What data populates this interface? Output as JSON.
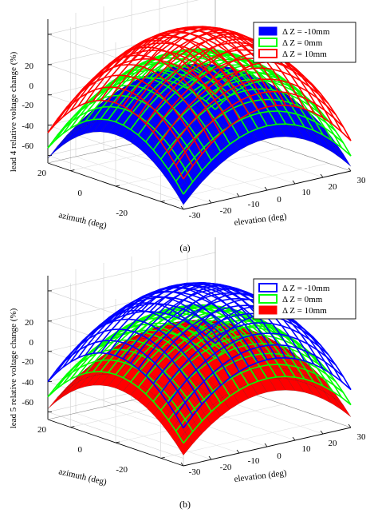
{
  "chart_data": [
    {
      "type": "surface",
      "panel_label": "(a)",
      "zlabel": "lead 4 relative voltage change (%)",
      "xlabel": "elevation (deg)",
      "ylabel": "azimuth (deg)",
      "x_ticks": [
        "-30",
        "-20",
        "-10",
        "0",
        "10",
        "20",
        "30"
      ],
      "y_ticks": [
        "-20",
        "0",
        "20"
      ],
      "z_ticks": [
        "-60",
        "-40",
        "-20",
        "0",
        "20"
      ],
      "xlim": [
        -30,
        30
      ],
      "ylim": [
        -30,
        30
      ],
      "zlim": [
        -65,
        30
      ],
      "grid": true,
      "legend_position": "top-right",
      "legend": [
        "Δ Z = -10mm",
        "Δ Z = 0mm",
        "Δ Z = 10mm"
      ],
      "series": [
        {
          "name": "Δ Z = -10mm",
          "color": "#0000ff",
          "style": "filled",
          "peak": 0,
          "edge_min": -62
        },
        {
          "name": "Δ Z = 0mm",
          "color": "#00ff00",
          "style": "wireframe",
          "peak": 10,
          "edge_min": -55
        },
        {
          "name": "Δ Z = 10mm",
          "color": "#ff0000",
          "style": "wireframe",
          "peak": 25,
          "edge_min": -45
        }
      ]
    },
    {
      "type": "surface",
      "panel_label": "(b)",
      "zlabel": "lead 5 relative voltage change (%)",
      "xlabel": "elevation (deg)",
      "ylabel": "azimuth (deg)",
      "x_ticks": [
        "-30",
        "-20",
        "-10",
        "0",
        "10",
        "20",
        "30"
      ],
      "y_ticks": [
        "-20",
        "0",
        "20"
      ],
      "z_ticks": [
        "-60",
        "-40",
        "-20",
        "0",
        "20"
      ],
      "xlim": [
        -30,
        30
      ],
      "ylim": [
        -30,
        30
      ],
      "zlim": [
        -65,
        30
      ],
      "grid": true,
      "legend_position": "top-right",
      "legend": [
        "Δ Z = -10mm",
        "Δ Z = 0mm",
        "Δ Z = 10mm"
      ],
      "series": [
        {
          "name": "Δ Z = -10mm",
          "color": "#0000ff",
          "style": "wireframe",
          "peak": 25,
          "edge_min": -40
        },
        {
          "name": "Δ Z = 0mm",
          "color": "#00ff00",
          "style": "wireframe",
          "peak": 10,
          "edge_min": -50
        },
        {
          "name": "Δ Z = 10mm",
          "color": "#ff0000",
          "style": "filled",
          "peak": 0,
          "edge_min": -58
        }
      ]
    }
  ]
}
